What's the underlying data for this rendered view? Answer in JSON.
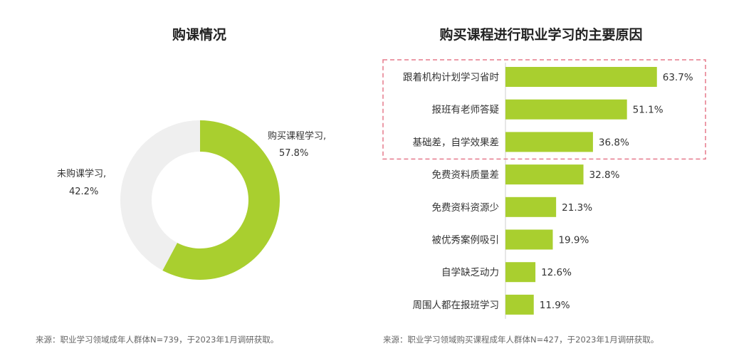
{
  "chart_data": [
    {
      "type": "pie",
      "title": "购课情况",
      "donut": true,
      "slices": [
        {
          "label": "购买课程学习,",
          "value": 57.8,
          "value_text": "57.8%",
          "color": "#A9CF2F"
        },
        {
          "label": "未购课学习,",
          "value": 42.2,
          "value_text": "42.2%",
          "color": "#EFEFEF"
        }
      ],
      "source": "来源：职业学习领域成年人群体N=739，于2023年1月调研获取。"
    },
    {
      "type": "bar",
      "orientation": "horizontal",
      "title": "购买课程进行职业学习的主要原因",
      "categories": [
        "跟着机构计划学习省时",
        "报班有老师答疑",
        "基础差，自学效果差",
        "免费资料质量差",
        "免费资料资源少",
        "被优秀案例吸引",
        "自学缺乏动力",
        "周围人都在报班学习"
      ],
      "values": [
        63.7,
        51.1,
        36.8,
        32.8,
        21.3,
        19.9,
        12.6,
        11.9
      ],
      "value_labels": [
        "63.7%",
        "51.1%",
        "36.8%",
        "32.8%",
        "21.3%",
        "19.9%",
        "12.6%",
        "11.9%"
      ],
      "bar_color": "#A9CF2F",
      "highlight_count": 3,
      "highlight_color": "#E57A8C",
      "source": "来源：职业学习领域购买课程成年人群体N=427，于2023年1月调研获取。"
    }
  ]
}
